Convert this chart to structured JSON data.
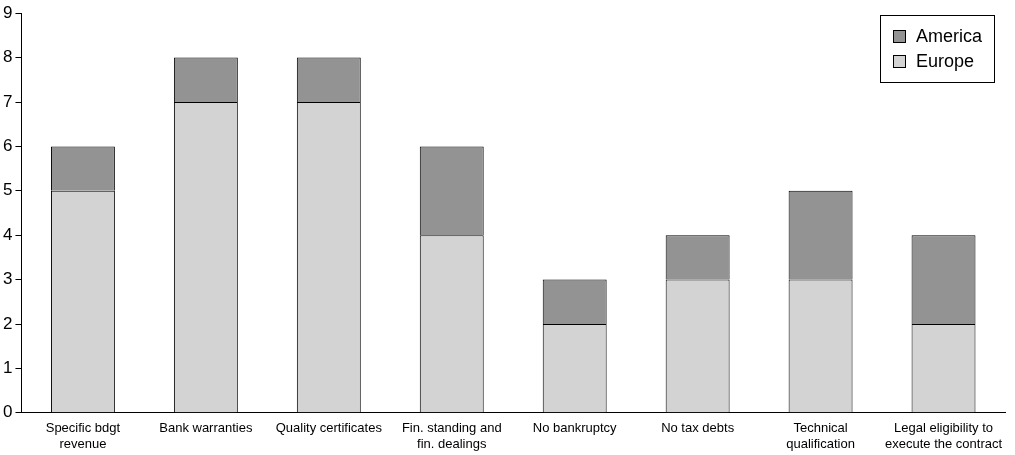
{
  "chart_data": {
    "type": "bar",
    "stacked": true,
    "categories": [
      "Specific bdgt revenue",
      "Bank warranties",
      "Quality certificates",
      "Fin. standing and fin. dealings",
      "No bankruptcy",
      "No tax debts",
      "Technical qualification",
      "Legal eligibility to execute the contract"
    ],
    "series": [
      {
        "name": "Europe",
        "color": "#d3d3d3",
        "values": [
          5,
          7,
          7,
          4,
          2,
          3,
          3,
          2
        ]
      },
      {
        "name": "America",
        "color": "#939393",
        "values": [
          1,
          1,
          1,
          2,
          1,
          1,
          2,
          2
        ]
      }
    ],
    "ylim": [
      0,
      9
    ],
    "yticks": [
      0,
      1,
      2,
      3,
      4,
      5,
      6,
      7,
      8,
      9
    ],
    "grid": false,
    "legend": "top right"
  }
}
